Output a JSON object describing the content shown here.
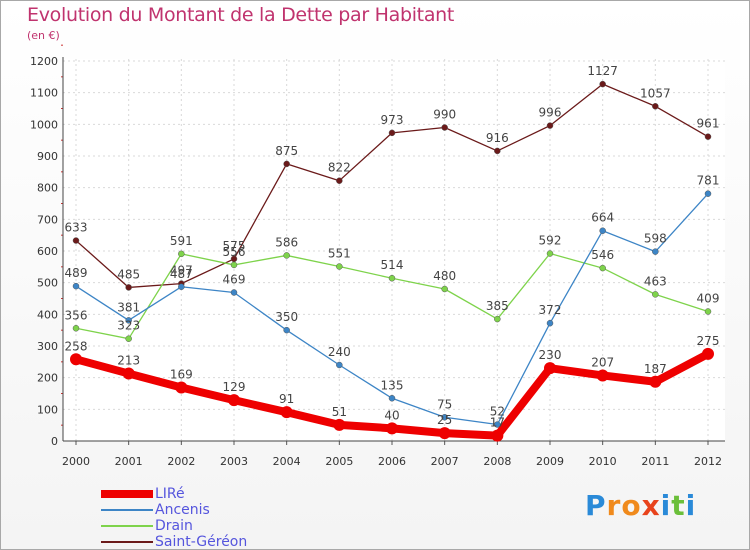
{
  "title": "Evolution du Montant de la Dette par Habitant",
  "subtitle": "(en €)",
  "logo": {
    "letters": [
      "P",
      "r",
      "o",
      "x",
      "i",
      "t",
      "i"
    ],
    "colors": [
      "#2a8ad8",
      "#f08a1c",
      "#f08a1c",
      "#e8431c",
      "#2a8ad8",
      "#6bbf3a",
      "#2a8ad8"
    ]
  },
  "chart_data": {
    "type": "line",
    "title": "Evolution du Montant de la Dette par Habitant",
    "subtitle": "(en €)",
    "x": [
      "2000",
      "2001",
      "2002",
      "2003",
      "2004",
      "2005",
      "2006",
      "2007",
      "2008",
      "2009",
      "2010",
      "2011",
      "2012"
    ],
    "ylim": [
      0,
      1200
    ],
    "yticks": [
      0,
      100,
      200,
      300,
      400,
      500,
      600,
      700,
      800,
      900,
      1000,
      1100,
      1200
    ],
    "grid": true,
    "legend_position": "bottom-left",
    "series": [
      {
        "name": "LIRé",
        "color": "#ee0000",
        "values": [
          258,
          213,
          169,
          129,
          91,
          51,
          40,
          25,
          17,
          230,
          207,
          187,
          275
        ]
      },
      {
        "name": "Ancenis",
        "color": "#3d85c6",
        "values": [
          489,
          381,
          487,
          469,
          350,
          240,
          135,
          75,
          52,
          372,
          664,
          598,
          781
        ]
      },
      {
        "name": "Drain",
        "color": "#7ed34b",
        "values": [
          356,
          323,
          591,
          556,
          586,
          551,
          514,
          480,
          385,
          592,
          546,
          463,
          409
        ]
      },
      {
        "name": "Saint-Géréon",
        "color": "#6b1a1a",
        "values": [
          633,
          485,
          497,
          575,
          875,
          822,
          973,
          990,
          916,
          996,
          1127,
          1057,
          961
        ]
      }
    ]
  }
}
